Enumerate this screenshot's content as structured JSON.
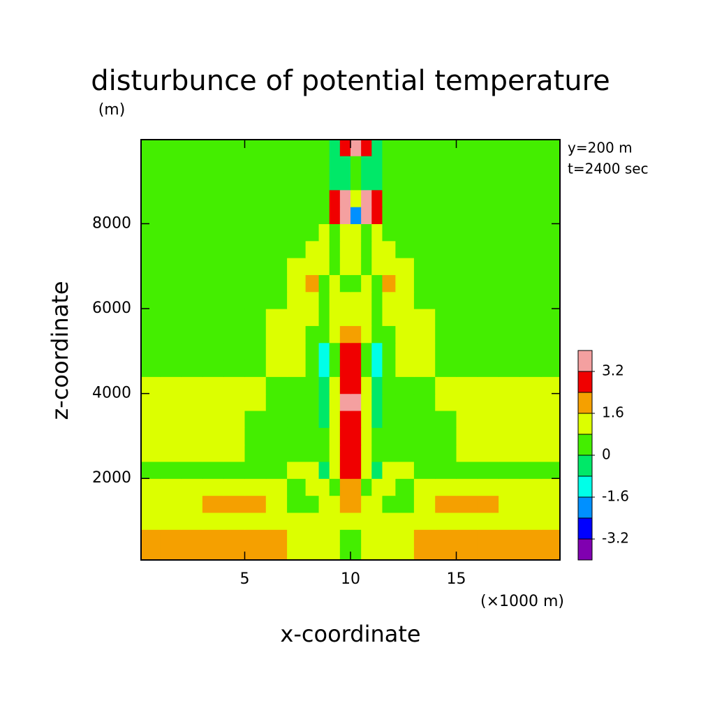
{
  "chart_data": {
    "type": "contour",
    "title": "disturbunce of potential temperature",
    "ylabel_note": "(m)",
    "annotations": [
      "y=200 m",
      "t=2400 sec"
    ],
    "xlabel": "x-coordinate",
    "ylabel": "z-coordinate",
    "xlabel_note": "(×1000 m)",
    "xlim": [
      0.1,
      19.9
    ],
    "xticks": [
      5,
      10,
      15
    ],
    "ylim": [
      80,
      9980
    ],
    "yticks": [
      2000,
      4000,
      6000,
      8000
    ],
    "x": [
      0.5,
      1.5,
      2.5,
      3.5,
      4.5,
      5.5,
      6.5,
      7.5,
      8.25,
      8.75,
      9.25,
      9.75,
      10.25,
      10.75,
      11.25,
      11.75,
      12.5,
      13.5,
      14.5,
      15.5,
      16.5,
      17.5,
      18.5,
      19.5
    ],
    "y": [
      200,
      600,
      1000,
      1400,
      1800,
      2200,
      2600,
      3000,
      3400,
      3800,
      4200,
      4600,
      5000,
      5400,
      5800,
      6200,
      6600,
      7000,
      7400,
      7800,
      8200,
      8600,
      9000,
      9400,
      9800
    ],
    "z": [
      [
        2,
        2,
        2,
        2,
        2,
        2,
        2,
        1.2,
        1.2,
        1.2,
        1.2,
        0.4,
        0.4,
        1.2,
        1.2,
        1.2,
        1.2,
        2,
        2,
        2,
        2,
        2,
        2,
        2
      ],
      [
        2,
        2,
        2,
        2,
        2,
        2,
        2,
        1.2,
        1.2,
        1.2,
        1.2,
        0.4,
        0.4,
        1.2,
        1.2,
        1.2,
        1.2,
        2,
        2,
        2,
        2,
        2,
        2,
        2
      ],
      [
        1.2,
        1.2,
        1.2,
        1.2,
        1.2,
        1.2,
        1.2,
        1.2,
        1.2,
        1.2,
        1.2,
        1.2,
        1.2,
        1.2,
        1.2,
        1.2,
        1.2,
        1.2,
        1.2,
        1.2,
        1.2,
        1.2,
        1.2,
        1.2
      ],
      [
        1.2,
        1.2,
        1.2,
        2,
        2,
        2,
        1.2,
        0.4,
        0.4,
        1.2,
        1.2,
        2,
        2,
        1.2,
        1.2,
        0.4,
        0.4,
        1.2,
        2,
        2,
        2,
        1.2,
        1.2,
        1.2
      ],
      [
        1.2,
        1.2,
        1.2,
        1.2,
        1.2,
        1.2,
        1.2,
        0.4,
        1.2,
        1.2,
        0.4,
        2,
        2,
        0.4,
        1.2,
        1.2,
        0.4,
        1.2,
        1.2,
        1.2,
        1.2,
        1.2,
        1.2,
        1.2
      ],
      [
        0.4,
        0.4,
        0.4,
        0.4,
        0.4,
        0.4,
        0.4,
        1.2,
        1.2,
        -0.4,
        1.2,
        2.8,
        2.8,
        1.2,
        -0.4,
        1.2,
        1.2,
        0.4,
        0.4,
        0.4,
        0.4,
        0.4,
        0.4,
        0.4
      ],
      [
        1.2,
        1.2,
        1.2,
        1.2,
        1.2,
        0.4,
        0.4,
        0.4,
        0.4,
        0.4,
        1.2,
        2.8,
        2.8,
        1.2,
        0.4,
        0.4,
        0.4,
        0.4,
        0.4,
        1.2,
        1.2,
        1.2,
        1.2,
        1.2
      ],
      [
        1.2,
        1.2,
        1.2,
        1.2,
        1.2,
        0.4,
        0.4,
        0.4,
        0.4,
        0.4,
        1.2,
        2.8,
        2.8,
        1.2,
        0.4,
        0.4,
        0.4,
        0.4,
        0.4,
        1.2,
        1.2,
        1.2,
        1.2,
        1.2
      ],
      [
        1.2,
        1.2,
        1.2,
        1.2,
        1.2,
        0.4,
        0.4,
        0.4,
        0.4,
        -0.4,
        1.2,
        2.8,
        2.8,
        1.2,
        -0.4,
        0.4,
        0.4,
        0.4,
        0.4,
        1.2,
        1.2,
        1.2,
        1.2,
        1.2
      ],
      [
        1.2,
        1.2,
        1.2,
        1.2,
        1.2,
        1.2,
        0.4,
        0.4,
        0.4,
        -0.4,
        1.2,
        3.6,
        3.6,
        1.2,
        -0.4,
        0.4,
        0.4,
        0.4,
        1.2,
        1.2,
        1.2,
        1.2,
        1.2,
        1.2
      ],
      [
        1.2,
        1.2,
        1.2,
        1.2,
        1.2,
        1.2,
        0.4,
        0.4,
        0.4,
        -0.4,
        1.2,
        2.8,
        2.8,
        1.2,
        -0.4,
        0.4,
        0.4,
        0.4,
        1.2,
        1.2,
        1.2,
        1.2,
        1.2,
        1.2
      ],
      [
        0.4,
        0.4,
        0.4,
        0.4,
        0.4,
        0.4,
        1.2,
        1.2,
        0.4,
        -1.2,
        0.4,
        2.8,
        2.8,
        0.4,
        -1.2,
        0.4,
        1.2,
        1.2,
        0.4,
        0.4,
        0.4,
        0.4,
        0.4,
        0.4
      ],
      [
        0.4,
        0.4,
        0.4,
        0.4,
        0.4,
        0.4,
        1.2,
        1.2,
        0.4,
        -1.2,
        0.4,
        2.8,
        2.8,
        0.4,
        -1.2,
        0.4,
        1.2,
        1.2,
        0.4,
        0.4,
        0.4,
        0.4,
        0.4,
        0.4
      ],
      [
        0.4,
        0.4,
        0.4,
        0.4,
        0.4,
        0.4,
        1.2,
        1.2,
        0.4,
        0.4,
        1.2,
        2,
        2,
        1.2,
        0.4,
        0.4,
        1.2,
        1.2,
        0.4,
        0.4,
        0.4,
        0.4,
        0.4,
        0.4
      ],
      [
        0.4,
        0.4,
        0.4,
        0.4,
        0.4,
        0.4,
        1.2,
        1.2,
        1.2,
        0.4,
        1.2,
        1.2,
        1.2,
        1.2,
        0.4,
        1.2,
        1.2,
        1.2,
        0.4,
        0.4,
        0.4,
        0.4,
        0.4,
        0.4
      ],
      [
        0.4,
        0.4,
        0.4,
        0.4,
        0.4,
        0.4,
        0.4,
        1.2,
        1.2,
        0.4,
        1.2,
        1.2,
        1.2,
        1.2,
        0.4,
        1.2,
        1.2,
        0.4,
        0.4,
        0.4,
        0.4,
        0.4,
        0.4,
        0.4
      ],
      [
        0.4,
        0.4,
        0.4,
        0.4,
        0.4,
        0.4,
        0.4,
        1.2,
        2,
        0.4,
        1.2,
        0.4,
        0.4,
        1.2,
        0.4,
        2,
        1.2,
        0.4,
        0.4,
        0.4,
        0.4,
        0.4,
        0.4,
        0.4
      ],
      [
        0.4,
        0.4,
        0.4,
        0.4,
        0.4,
        0.4,
        0.4,
        1.2,
        1.2,
        1.2,
        0.4,
        1.2,
        1.2,
        0.4,
        1.2,
        1.2,
        1.2,
        0.4,
        0.4,
        0.4,
        0.4,
        0.4,
        0.4,
        0.4
      ],
      [
        0.4,
        0.4,
        0.4,
        0.4,
        0.4,
        0.4,
        0.4,
        0.4,
        1.2,
        1.2,
        0.4,
        1.2,
        1.2,
        0.4,
        1.2,
        1.2,
        0.4,
        0.4,
        0.4,
        0.4,
        0.4,
        0.4,
        0.4,
        0.4
      ],
      [
        0.4,
        0.4,
        0.4,
        0.4,
        0.4,
        0.4,
        0.4,
        0.4,
        0.4,
        1.2,
        0.4,
        1.2,
        1.2,
        0.4,
        1.2,
        0.4,
        0.4,
        0.4,
        0.4,
        0.4,
        0.4,
        0.4,
        0.4,
        0.4
      ],
      [
        0.4,
        0.4,
        0.4,
        0.4,
        0.4,
        0.4,
        0.4,
        0.4,
        0.4,
        0.4,
        2.8,
        3.6,
        -2,
        3.6,
        2.8,
        0.4,
        0.4,
        0.4,
        0.4,
        0.4,
        0.4,
        0.4,
        0.4,
        0.4
      ],
      [
        0.4,
        0.4,
        0.4,
        0.4,
        0.4,
        0.4,
        0.4,
        0.4,
        0.4,
        0.4,
        2.8,
        3.6,
        1.2,
        3.6,
        2.8,
        0.4,
        0.4,
        0.4,
        0.4,
        0.4,
        0.4,
        0.4,
        0.4,
        0.4
      ],
      [
        0.4,
        0.4,
        0.4,
        0.4,
        0.4,
        0.4,
        0.4,
        0.4,
        0.4,
        0.4,
        -0.4,
        -0.4,
        0.4,
        -0.4,
        -0.4,
        0.4,
        0.4,
        0.4,
        0.4,
        0.4,
        0.4,
        0.4,
        0.4,
        0.4
      ],
      [
        0.4,
        0.4,
        0.4,
        0.4,
        0.4,
        0.4,
        0.4,
        0.4,
        0.4,
        0.4,
        -0.4,
        -0.4,
        0.4,
        -0.4,
        -0.4,
        0.4,
        0.4,
        0.4,
        0.4,
        0.4,
        0.4,
        0.4,
        0.4,
        0.4
      ],
      [
        0.4,
        0.4,
        0.4,
        0.4,
        0.4,
        0.4,
        0.4,
        0.4,
        0.4,
        0.4,
        -0.4,
        2.8,
        3.6,
        2.8,
        -0.4,
        0.4,
        0.4,
        0.4,
        0.4,
        0.4,
        0.4,
        0.4,
        0.4,
        0.4
      ]
    ],
    "levels": [
      -4,
      -3.2,
      -2.4,
      -1.6,
      -0.8,
      0,
      0.8,
      1.6,
      2.4,
      3.2,
      4
    ],
    "colors": [
      "#8000b0",
      "#0000ff",
      "#0090ff",
      "#00ffe8",
      "#00e868",
      "#44ee00",
      "#dcff00",
      "#f5a000",
      "#f00000",
      "#f4a0a0"
    ],
    "colorbar_ticks": [
      -3.2,
      -1.6,
      0,
      1.6,
      3.2
    ]
  }
}
